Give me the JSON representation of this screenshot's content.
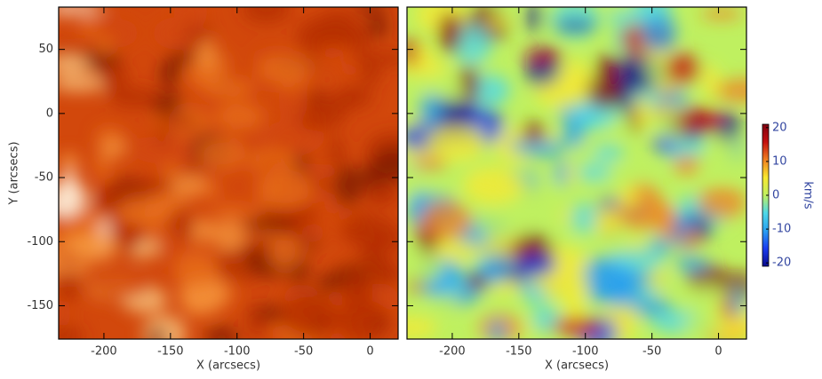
{
  "chart_data": [
    {
      "type": "image",
      "xlabel": "X (arcsecs)",
      "ylabel": "Y (arcsecs)",
      "xlim": [
        -234,
        21
      ],
      "ylim": [
        -176,
        83
      ],
      "xticks": [
        -200,
        -150,
        -100,
        -50,
        0
      ],
      "yticks": [
        50,
        0,
        -50,
        -100,
        -150
      ],
      "colormap": [
        "#7a1800",
        "#b32c00",
        "#d2480c",
        "#e8701c",
        "#f59a40",
        "#fcd08a",
        "#fff4e0"
      ]
    },
    {
      "type": "image",
      "xlabel": "X (arcsecs)",
      "xlim": [
        -234,
        21
      ],
      "ylim": [
        -176,
        83
      ],
      "xticks": [
        -200,
        -150,
        -100,
        -50,
        0
      ],
      "yticks": [
        50,
        0,
        -50,
        -100,
        -150
      ],
      "colormap": [
        "#0a0a8c",
        "#1a3cf0",
        "#2aa0f0",
        "#4fd8e8",
        "#bff060",
        "#f8e830",
        "#f08020",
        "#c41010",
        "#800010"
      ],
      "colorbar": {
        "label": "km/s",
        "lim": [
          -21,
          21
        ],
        "ticks": [
          20,
          10,
          0,
          -10,
          -20
        ]
      }
    }
  ]
}
